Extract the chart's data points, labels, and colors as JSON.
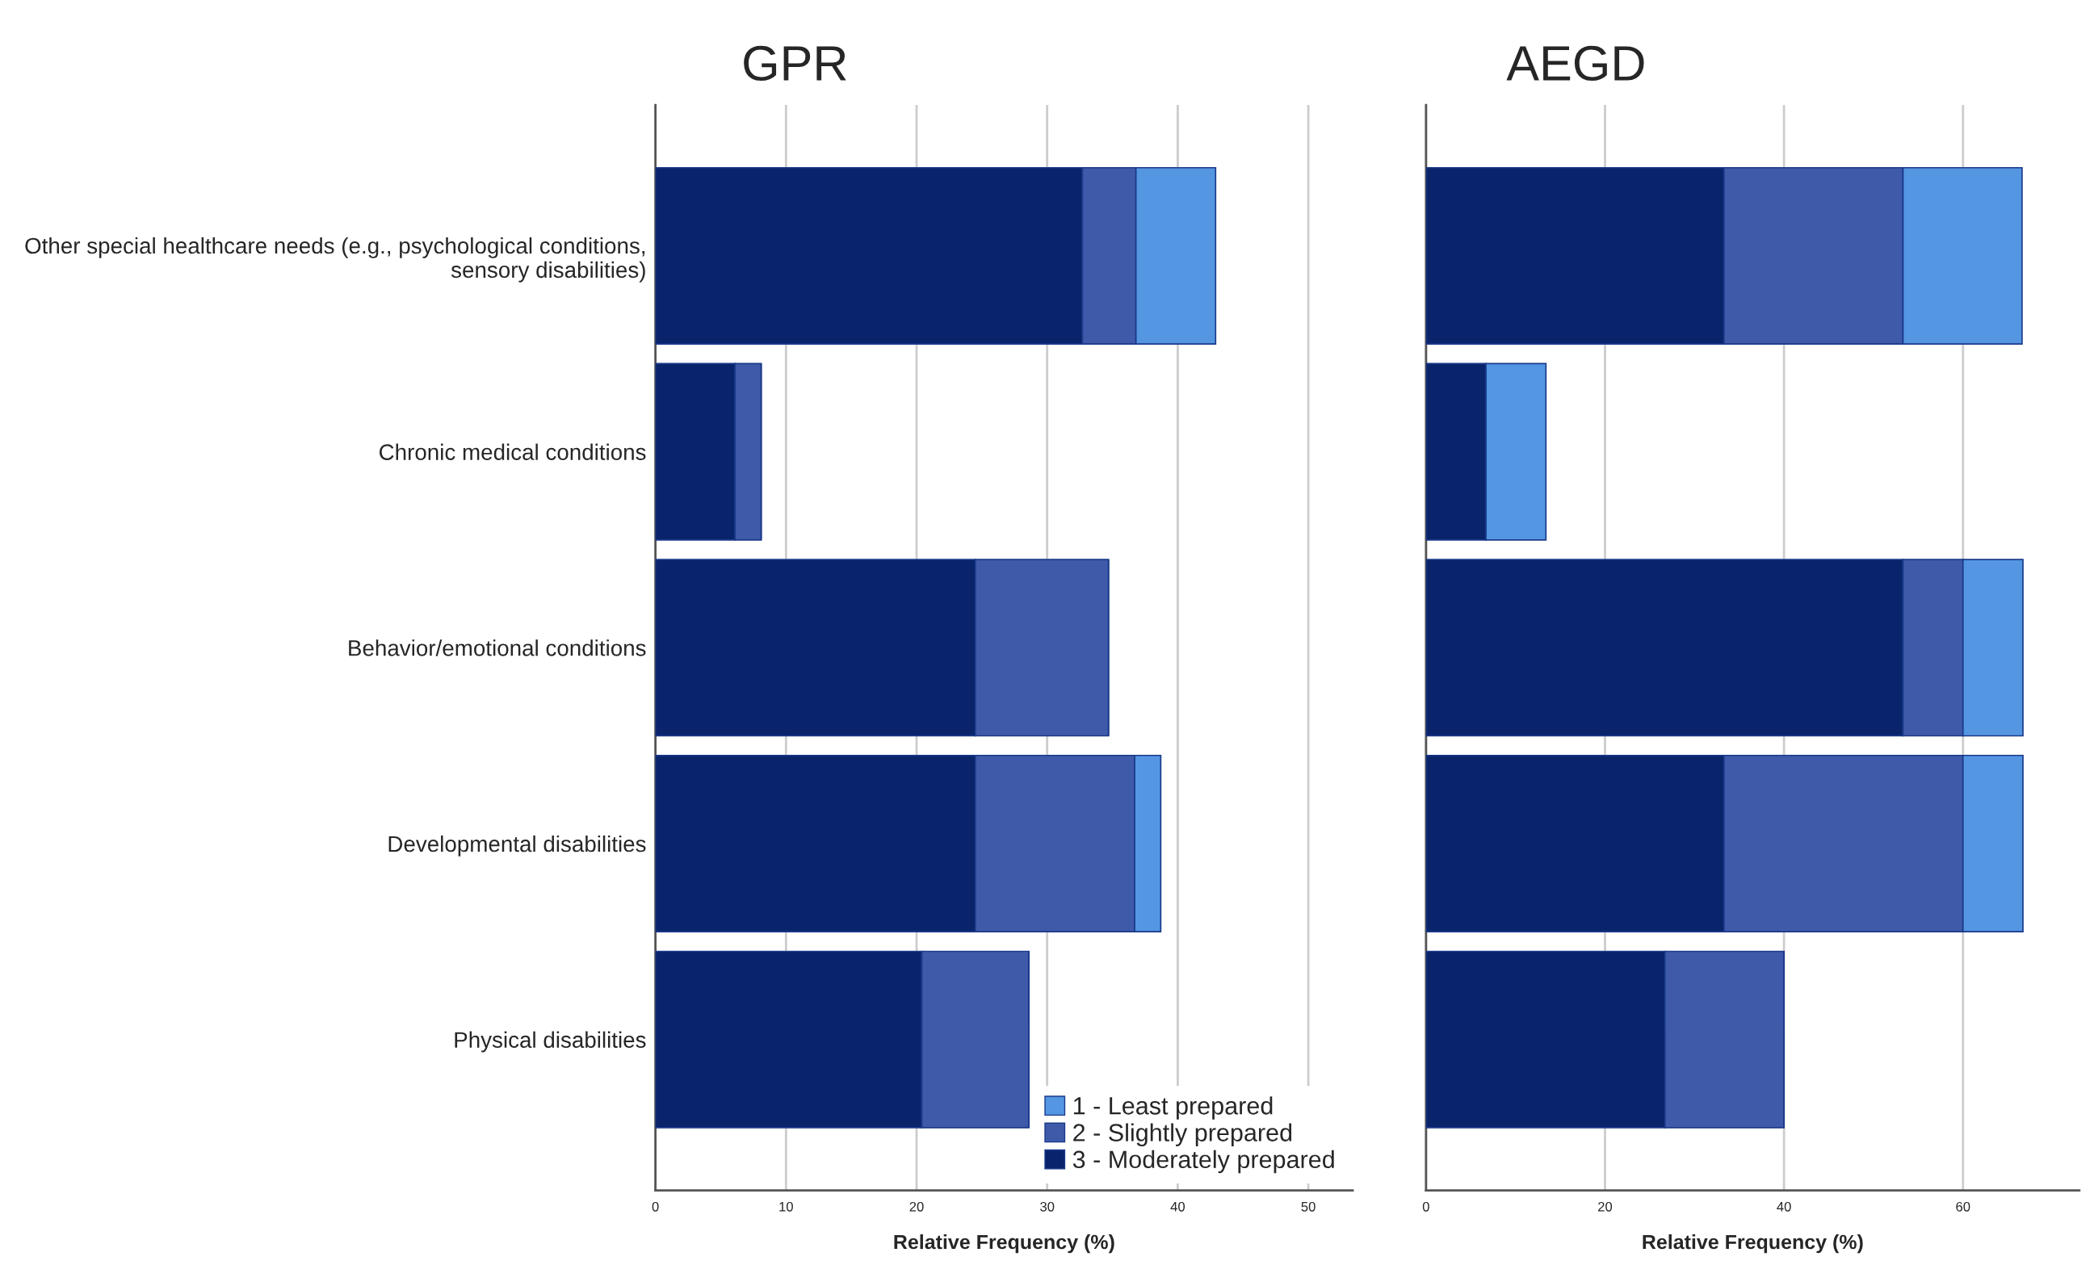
{
  "chart_data": [
    {
      "type": "bar",
      "title": "GPR",
      "xlabel": "Relative Frequency (%)",
      "orientation": "horizontal",
      "stacked": true,
      "categories": [
        "Other special healthcare needs (e.g., psychological conditions,\nsensory disabilities)",
        "Chronic medical conditions",
        "Behavior/emotional conditions",
        "Developmental disabilities",
        "Physical disabilities"
      ],
      "series": [
        {
          "name": "3 - Moderately prepared",
          "color": "#0a246c",
          "values": [
            32.7,
            6.1,
            24.5,
            24.5,
            20.4
          ]
        },
        {
          "name": "2 - Slightly prepared",
          "color": "#3f5aa8",
          "values": [
            4.1,
            2.0,
            10.2,
            12.2,
            8.2
          ]
        },
        {
          "name": "1 - Least prepared",
          "color": "#5496e2",
          "values": [
            6.1,
            null,
            null,
            2.0,
            null
          ]
        }
      ],
      "xlim": [
        0,
        53.4
      ],
      "xticks": [
        0,
        10,
        20,
        30,
        40,
        50
      ],
      "grid": "x",
      "legend": "bottom right"
    },
    {
      "type": "bar",
      "title": "AEGD",
      "xlabel": "Relative Frequency (%)",
      "orientation": "horizontal",
      "stacked": true,
      "categories": [
        null,
        null,
        null,
        null,
        null
      ],
      "series": [
        {
          "color": "#0a246c",
          "values": [
            33.3,
            6.7,
            53.3,
            33.3,
            26.7
          ]
        },
        {
          "color": "#3f5aa8",
          "values": [
            20.0,
            null,
            6.7,
            26.7,
            13.3
          ]
        },
        {
          "color": "#5496e2",
          "values": [
            13.3,
            6.7,
            6.7,
            6.7,
            null
          ]
        }
      ],
      "xlim": [
        0,
        73
      ],
      "xticks": [
        0,
        20,
        40,
        60
      ],
      "grid": "x",
      "tick_labels": "x"
    }
  ]
}
